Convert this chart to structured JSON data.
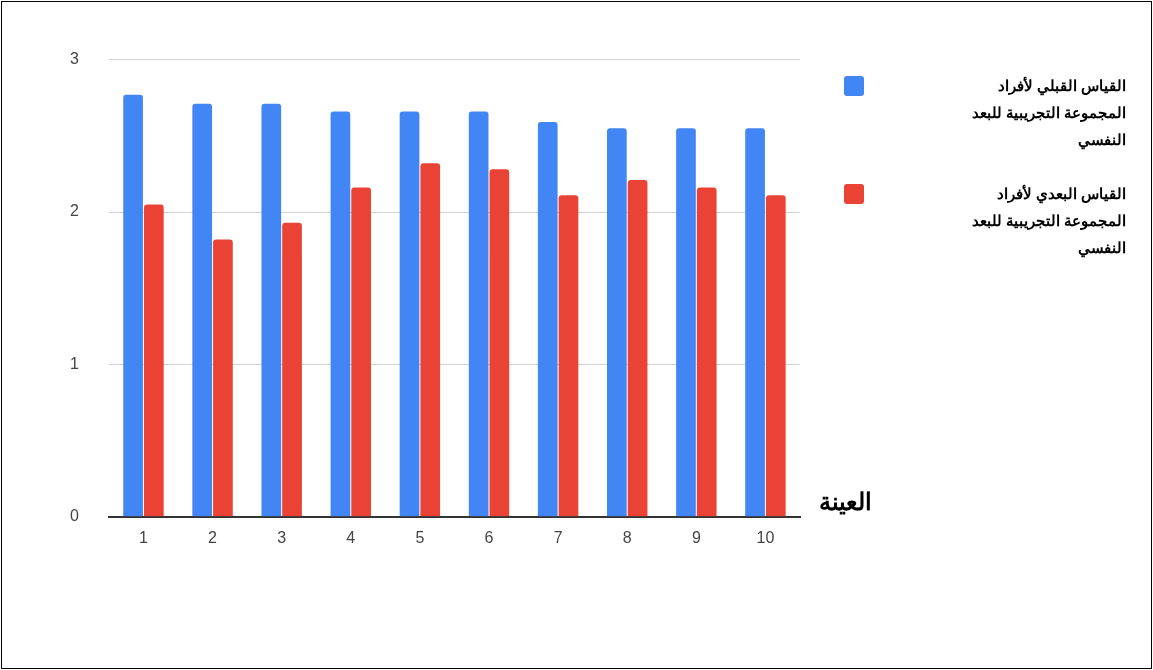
{
  "chart_data": {
    "type": "bar",
    "xlabel": "العينة",
    "categories": [
      "1",
      "2",
      "3",
      "4",
      "5",
      "6",
      "7",
      "8",
      "9",
      "10"
    ],
    "series": [
      {
        "name": "القياس القبلي لأفراد المجموعة التجريبية للبعد النفسي",
        "color": "#4285f4",
        "values": [
          2.77,
          2.71,
          2.71,
          2.66,
          2.66,
          2.66,
          2.59,
          2.55,
          2.55,
          2.55
        ]
      },
      {
        "name": "القياس البعدي لأفراد المجموعة التجريبية للبعد النفسي",
        "color": "#ea4335",
        "values": [
          2.05,
          1.82,
          1.93,
          2.16,
          2.32,
          2.28,
          2.11,
          2.21,
          2.16,
          2.11
        ]
      }
    ],
    "ylim": [
      0,
      3
    ],
    "yticks": [
      0,
      1,
      2,
      3
    ],
    "grid": "y",
    "legend": "right"
  }
}
